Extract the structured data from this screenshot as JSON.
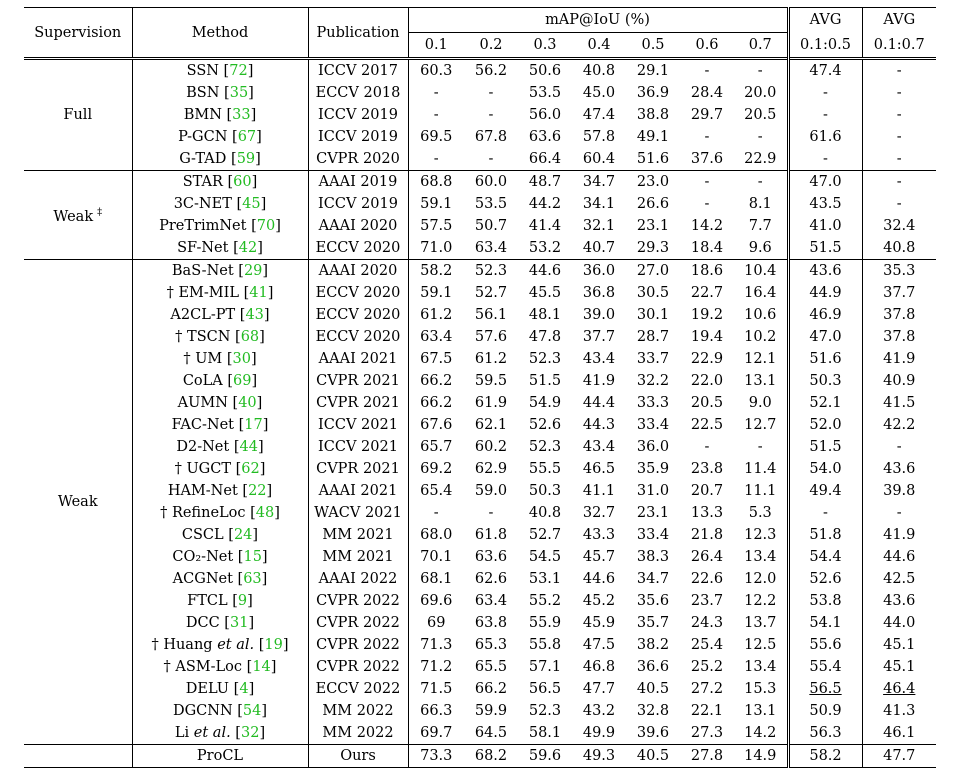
{
  "header": {
    "supervision": "Supervision",
    "method": "Method",
    "publication": "Publication",
    "map": "mAP@IoU (%)",
    "thresholds": [
      "0.1",
      "0.2",
      "0.3",
      "0.4",
      "0.5",
      "0.6",
      "0.7"
    ],
    "avg1_top": "AVG",
    "avg1_bottom": "0.1:0.5",
    "avg2_top": "AVG",
    "avg2_bottom": "0.1:0.7"
  },
  "groups": [
    {
      "label": "Full",
      "sup": "",
      "rows": [
        {
          "pre": "",
          "name": "SSN",
          "ref": "72",
          "pub": "ICCV 2017",
          "v": [
            "60.3",
            "56.2",
            "50.6",
            "40.8",
            "29.1",
            "-",
            "-"
          ],
          "a1": "47.4",
          "a2": "-"
        },
        {
          "pre": "",
          "name": "BSN",
          "ref": "35",
          "pub": "ECCV 2018",
          "v": [
            "-",
            "-",
            "53.5",
            "45.0",
            "36.9",
            "28.4",
            "20.0"
          ],
          "a1": "-",
          "a2": "-"
        },
        {
          "pre": "",
          "name": "BMN",
          "ref": "33",
          "pub": "ICCV 2019",
          "v": [
            "-",
            "-",
            "56.0",
            "47.4",
            "38.8",
            "29.7",
            "20.5"
          ],
          "a1": "-",
          "a2": "-"
        },
        {
          "pre": "",
          "name": "P-GCN",
          "ref": "67",
          "pub": "ICCV 2019",
          "v": [
            "69.5",
            "67.8",
            "63.6",
            "57.8",
            "49.1",
            "-",
            "-"
          ],
          "a1": "61.6",
          "a2": "-"
        },
        {
          "pre": "",
          "name": "G-TAD",
          "ref": "59",
          "pub": "CVPR 2020",
          "v": [
            "-",
            "-",
            "66.4",
            "60.4",
            "51.6",
            "37.6",
            "22.9"
          ],
          "a1": "-",
          "a2": "-"
        }
      ]
    },
    {
      "label": "Weak",
      "sup": "‡",
      "rows": [
        {
          "pre": "",
          "name": "STAR",
          "ref": "60",
          "pub": "AAAI 2019",
          "v": [
            "68.8",
            "60.0",
            "48.7",
            "34.7",
            "23.0",
            "-",
            "-"
          ],
          "a1": "47.0",
          "a2": "-"
        },
        {
          "pre": "",
          "name": "3C-NET",
          "ref": "45",
          "pub": "ICCV 2019",
          "v": [
            "59.1",
            "53.5",
            "44.2",
            "34.1",
            "26.6",
            "-",
            "8.1"
          ],
          "a1": "43.5",
          "a2": "-"
        },
        {
          "pre": "",
          "name": "PreTrimNet",
          "ref": "70",
          "pub": "AAAI 2020",
          "v": [
            "57.5",
            "50.7",
            "41.4",
            "32.1",
            "23.1",
            "14.2",
            "7.7"
          ],
          "a1": "41.0",
          "a2": "32.4"
        },
        {
          "pre": "",
          "name": "SF-Net",
          "ref": "42",
          "pub": "ECCV 2020",
          "v": [
            "71.0",
            "63.4",
            "53.2",
            "40.7",
            "29.3",
            "18.4",
            "9.6"
          ],
          "a1": "51.5",
          "a2": "40.8"
        }
      ]
    },
    {
      "label": "Weak",
      "sup": "",
      "rows": [
        {
          "pre": "",
          "name": "BaS-Net",
          "ref": "29",
          "pub": "AAAI 2020",
          "v": [
            "58.2",
            "52.3",
            "44.6",
            "36.0",
            "27.0",
            "18.6",
            "10.4"
          ],
          "a1": "43.6",
          "a2": "35.3"
        },
        {
          "pre": "† ",
          "name": "EM-MIL",
          "ref": "41",
          "pub": "ECCV 2020",
          "v": [
            "59.1",
            "52.7",
            "45.5",
            "36.8",
            "30.5",
            "22.7",
            "16.4"
          ],
          "a1": "44.9",
          "a2": "37.7"
        },
        {
          "pre": "",
          "name": "A2CL-PT",
          "ref": "43",
          "pub": "ECCV 2020",
          "v": [
            "61.2",
            "56.1",
            "48.1",
            "39.0",
            "30.1",
            "19.2",
            "10.6"
          ],
          "a1": "46.9",
          "a2": "37.8"
        },
        {
          "pre": "† ",
          "name": "TSCN",
          "ref": "68",
          "pub": "ECCV 2020",
          "v": [
            "63.4",
            "57.6",
            "47.8",
            "37.7",
            "28.7",
            "19.4",
            "10.2"
          ],
          "a1": "47.0",
          "a2": "37.8"
        },
        {
          "pre": "† ",
          "name": "UM",
          "ref": "30",
          "pub": "AAAI 2021",
          "v": [
            "67.5",
            "61.2",
            "52.3",
            "43.4",
            "33.7",
            "22.9",
            "12.1"
          ],
          "a1": "51.6",
          "a2": "41.9"
        },
        {
          "pre": "",
          "name": "CoLA",
          "ref": "69",
          "pub": "CVPR 2021",
          "v": [
            "66.2",
            "59.5",
            "51.5",
            "41.9",
            "32.2",
            "22.0",
            "13.1"
          ],
          "a1": "50.3",
          "a2": "40.9"
        },
        {
          "pre": "",
          "name": "AUMN",
          "ref": "40",
          "pub": "CVPR 2021",
          "v": [
            "66.2",
            "61.9",
            "54.9",
            "44.4",
            "33.3",
            "20.5",
            "9.0"
          ],
          "a1": "52.1",
          "a2": "41.5"
        },
        {
          "pre": "",
          "name": "FAC-Net",
          "ref": "17",
          "pub": "ICCV 2021",
          "v": [
            "67.6",
            "62.1",
            "52.6",
            "44.3",
            "33.4",
            "22.5",
            "12.7"
          ],
          "a1": "52.0",
          "a2": "42.2"
        },
        {
          "pre": "",
          "name": "D2-Net",
          "ref": "44",
          "pub": "ICCV 2021",
          "v": [
            "65.7",
            "60.2",
            "52.3",
            "43.4",
            "36.0",
            "-",
            "-"
          ],
          "a1": "51.5",
          "a2": "-"
        },
        {
          "pre": "† ",
          "name": "UGCT",
          "ref": "62",
          "pub": "CVPR 2021",
          "v": [
            "69.2",
            "62.9",
            "55.5",
            "46.5",
            "35.9",
            "23.8",
            "11.4"
          ],
          "a1": "54.0",
          "a2": "43.6"
        },
        {
          "pre": "",
          "name": "HAM-Net",
          "ref": "22",
          "pub": "AAAI 2021",
          "v": [
            "65.4",
            "59.0",
            "50.3",
            "41.1",
            "31.0",
            "20.7",
            "11.1"
          ],
          "a1": "49.4",
          "a2": "39.8"
        },
        {
          "pre": "† ",
          "name": "RefineLoc",
          "ref": "48",
          "pub": "WACV 2021",
          "v": [
            "-",
            "-",
            "40.8",
            "32.7",
            "23.1",
            "13.3",
            "5.3"
          ],
          "a1": "-",
          "a2": "-"
        },
        {
          "pre": "",
          "name": "CSCL",
          "ref": "24",
          "pub": "MM 2021",
          "v": [
            "68.0",
            "61.8",
            "52.7",
            "43.3",
            "33.4",
            "21.8",
            "12.3"
          ],
          "a1": "51.8",
          "a2": "41.9"
        },
        {
          "pre": "",
          "name": "CO₂-Net",
          "ref": "15",
          "pub": "MM 2021",
          "v": [
            "70.1",
            "63.6",
            "54.5",
            "45.7",
            "38.3",
            "26.4",
            "13.4"
          ],
          "a1": "54.4",
          "a2": "44.6"
        },
        {
          "pre": "",
          "name": "ACGNet",
          "ref": "63",
          "pub": "AAAI 2022",
          "v": [
            "68.1",
            "62.6",
            "53.1",
            "44.6",
            "34.7",
            "22.6",
            "12.0"
          ],
          "a1": "52.6",
          "a2": "42.5"
        },
        {
          "pre": "",
          "name": "FTCL",
          "ref": "9",
          "pub": "CVPR 2022",
          "v": [
            "69.6",
            "63.4",
            "55.2",
            "45.2",
            "35.6",
            "23.7",
            "12.2"
          ],
          "a1": "53.8",
          "a2": "43.6"
        },
        {
          "pre": "",
          "name": "DCC",
          "ref": "31",
          "pub": "CVPR 2022",
          "v": [
            "69",
            "63.8",
            "55.9",
            "45.9",
            "35.7",
            "24.3",
            "13.7"
          ],
          "a1": "54.1",
          "a2": "44.0"
        },
        {
          "pre": "† ",
          "name": "Huang",
          "italic": "et al.",
          "ref": "19",
          "pub": "CVPR 2022",
          "v": [
            "71.3",
            "65.3",
            "55.8",
            "47.5",
            "38.2",
            "25.4",
            "12.5"
          ],
          "a1": "55.6",
          "a2": "45.1"
        },
        {
          "pre": "† ",
          "name": "ASM-Loc",
          "ref": "14",
          "pub": "CVPR 2022",
          "v": [
            "71.2",
            "65.5",
            "57.1",
            "46.8",
            "36.6",
            "25.2",
            "13.4"
          ],
          "a1": "55.4",
          "a2": "45.1"
        },
        {
          "pre": "",
          "name": "DELU",
          "ref": "4",
          "pub": "ECCV 2022",
          "v": [
            "71.5",
            "66.2",
            "56.5",
            "47.7",
            "40.5",
            "27.2",
            "15.3"
          ],
          "a1": "56.5",
          "a2": "46.4",
          "underline": true
        },
        {
          "pre": "",
          "name": "DGCNN",
          "ref": "54",
          "pub": "MM 2022",
          "v": [
            "66.3",
            "59.9",
            "52.3",
            "43.2",
            "32.8",
            "22.1",
            "13.1"
          ],
          "a1": "50.9",
          "a2": "41.3"
        },
        {
          "pre": "",
          "name": "Li",
          "italic": "et al.",
          "ref": "32",
          "pub": "MM 2022",
          "v": [
            "69.7",
            "64.5",
            "58.1",
            "49.9",
            "39.6",
            "27.3",
            "14.2"
          ],
          "a1": "56.3",
          "a2": "46.1"
        }
      ]
    }
  ],
  "ours": {
    "name": "ProCL",
    "pub": "Ours",
    "v": [
      "73.3",
      "68.2",
      "59.6",
      "49.3",
      "40.5",
      "27.8",
      "14.9"
    ],
    "a1": "58.2",
    "a2": "47.7"
  }
}
